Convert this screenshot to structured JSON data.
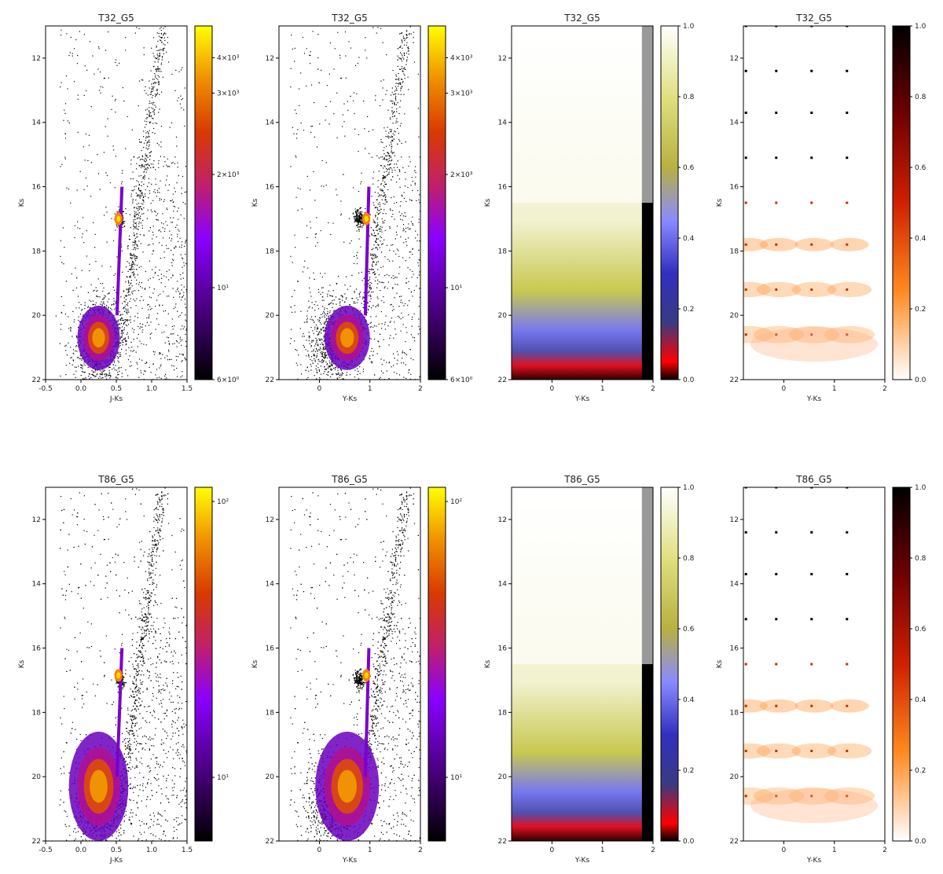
{
  "chart_data": [
    {
      "type": "heatmap",
      "title": "T32_G5",
      "xlabel": "J-Ks",
      "ylabel": "Ks",
      "xlim": [
        -0.5,
        1.5
      ],
      "ylim": [
        22,
        11
      ],
      "xticks": [
        "-0.5",
        "0.0",
        "0.5",
        "1.0",
        "1.5"
      ],
      "yticks": [
        "12",
        "14",
        "16",
        "18",
        "20",
        "22"
      ],
      "cmap": "gnuplot",
      "scale": "log",
      "colorbar": {
        "ticks": [
          "4×10³",
          "3×10³",
          "2×10³",
          "10¹",
          "6×10⁰"
        ]
      }
    },
    {
      "type": "heatmap",
      "title": "T32_G5",
      "xlabel": "Y-Ks",
      "ylabel": "Ks",
      "xlim": [
        -0.8,
        2
      ],
      "ylim": [
        22,
        11
      ],
      "xticks": [
        "0",
        "1",
        "2"
      ],
      "yticks": [
        "12",
        "14",
        "16",
        "18",
        "20",
        "22"
      ],
      "cmap": "gnuplot",
      "scale": "log",
      "colorbar": {
        "ticks": [
          "4×10³",
          "3×10³",
          "2×10³",
          "10¹",
          "6×10⁰"
        ]
      }
    },
    {
      "type": "heatmap",
      "title": "T32_G5",
      "xlabel": "Y-Ks",
      "ylabel": "Ks",
      "xlim": [
        -0.8,
        2
      ],
      "ylim": [
        22,
        11
      ],
      "xticks": [
        "0",
        "1",
        "2"
      ],
      "yticks": [
        "12",
        "14",
        "16",
        "18",
        "20",
        "22"
      ],
      "cmap": "gist_stern",
      "scale": "linear",
      "colorbar": {
        "ticks": [
          "1.0",
          "0.8",
          "0.6",
          "0.4",
          "0.2",
          "0.0"
        ]
      }
    },
    {
      "type": "heatmap",
      "title": "T32_G5",
      "xlabel": "Y-Ks",
      "ylabel": "Ks",
      "xlim": [
        -0.8,
        2
      ],
      "ylim": [
        22,
        11
      ],
      "xticks": [
        "0",
        "1",
        "2"
      ],
      "yticks": [
        "12",
        "14",
        "16",
        "18",
        "20",
        "22"
      ],
      "cmap": "gist_heat_r",
      "scale": "power",
      "colorbar": {
        "ticks": [
          "1.0",
          "0.8",
          "0.6",
          "0.4",
          "0.2",
          "0.0"
        ]
      }
    },
    {
      "type": "heatmap",
      "title": "T86_G5",
      "xlabel": "J-Ks",
      "ylabel": "Ks",
      "xlim": [
        -0.5,
        1.5
      ],
      "ylim": [
        22,
        11
      ],
      "xticks": [
        "-0.5",
        "0.0",
        "0.5",
        "1.0",
        "1.5"
      ],
      "yticks": [
        "12",
        "14",
        "16",
        "18",
        "20",
        "22"
      ],
      "cmap": "gnuplot",
      "scale": "log",
      "colorbar": {
        "ticks": [
          "10²",
          "10¹"
        ]
      }
    },
    {
      "type": "heatmap",
      "title": "T86_G5",
      "xlabel": "Y-Ks",
      "ylabel": "Ks",
      "xlim": [
        -0.8,
        2
      ],
      "ylim": [
        22,
        11
      ],
      "xticks": [
        "0",
        "1",
        "2"
      ],
      "yticks": [
        "12",
        "14",
        "16",
        "18",
        "20",
        "22"
      ],
      "cmap": "gnuplot",
      "scale": "log",
      "colorbar": {
        "ticks": [
          "10²",
          "10¹"
        ]
      }
    },
    {
      "type": "heatmap",
      "title": "T86_G5",
      "xlabel": "Y-Ks",
      "ylabel": "Ks",
      "xlim": [
        -0.8,
        2
      ],
      "ylim": [
        22,
        11
      ],
      "xticks": [
        "0",
        "1",
        "2"
      ],
      "yticks": [
        "12",
        "14",
        "16",
        "18",
        "20",
        "22"
      ],
      "cmap": "gist_stern",
      "scale": "linear",
      "colorbar": {
        "ticks": [
          "1.0",
          "0.8",
          "0.6",
          "0.4",
          "0.2",
          "0.0"
        ]
      }
    },
    {
      "type": "heatmap",
      "title": "T86_G5",
      "xlabel": "Y-Ks",
      "ylabel": "Ks",
      "xlim": [
        -0.8,
        2
      ],
      "ylim": [
        22,
        11
      ],
      "xticks": [
        "0",
        "1",
        "2"
      ],
      "yticks": [
        "12",
        "14",
        "16",
        "18",
        "20",
        "22"
      ],
      "cmap": "gist_heat_r",
      "scale": "power",
      "colorbar": {
        "ticks": [
          "1.0",
          "0.8",
          "0.6",
          "0.4",
          "0.2",
          "0.0"
        ]
      }
    }
  ]
}
